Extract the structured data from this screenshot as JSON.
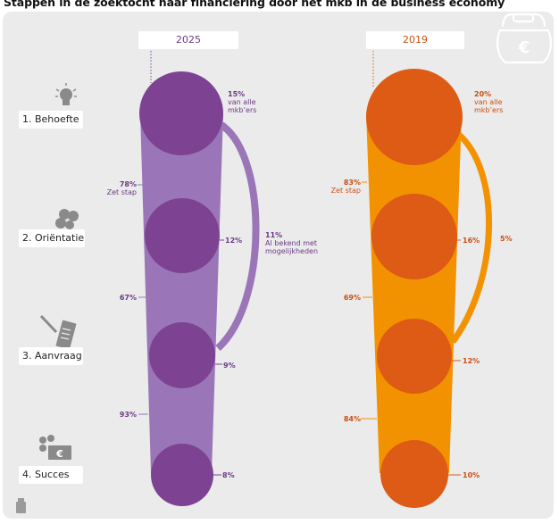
{
  "title": "Stappen in de zoektocht naar financiering door het mkb in de business economy",
  "steps": [
    "1. Behoefte",
    "2. Oriëntatie",
    "3. Aanvraag",
    "4. Succes"
  ],
  "colors": {
    "purple_circle": "#7d4392",
    "purple_funnel": "#9a76b8",
    "purple_text": "#6b3a86",
    "orange_circle": "#dd5b14",
    "orange_funnel": "#f39200",
    "orange_text": "#c94f14",
    "panel_bg": "#ebebeb"
  },
  "chart_data": [
    {
      "type": "funnel",
      "year": "2025",
      "stages": [
        "Behoefte",
        "Oriëntatie",
        "Aanvraag",
        "Succes"
      ],
      "values": [
        15,
        12,
        9,
        8
      ],
      "value_labels": [
        "15%",
        "12%",
        "9%",
        "8%"
      ],
      "first_value_note": "van alle mkb’ers",
      "conversion_labels": [
        "78%",
        "67%",
        "93%"
      ],
      "conversion_note": "Zet stap",
      "skip_label": "11%",
      "skip_note": "Al bekend met mogelijkheden"
    },
    {
      "type": "funnel",
      "year": "2019",
      "stages": [
        "Behoefte",
        "Oriëntatie",
        "Aanvraag",
        "Succes"
      ],
      "values": [
        20,
        16,
        12,
        10
      ],
      "value_labels": [
        "20%",
        "16%",
        "12%",
        "10%"
      ],
      "first_value_note": "van alle mkb’ers",
      "conversion_labels": [
        "83%",
        "69%",
        "84%"
      ],
      "conversion_note": "Zet stap",
      "skip_label": "5%"
    }
  ]
}
